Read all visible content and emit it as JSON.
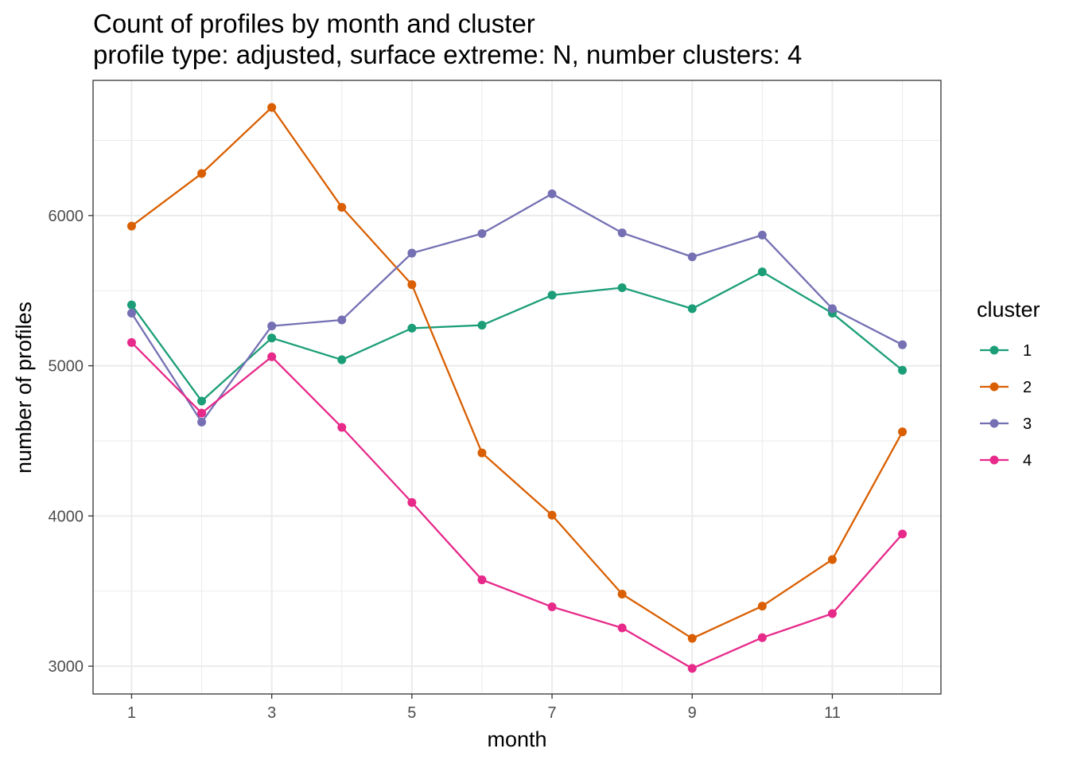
{
  "chart_data": {
    "type": "line",
    "title": "Count of profiles by month and cluster",
    "subtitle": "profile type: adjusted, surface extreme: N, number clusters: 4",
    "xlabel": "month",
    "ylabel": "number of profiles",
    "x": [
      1,
      2,
      3,
      4,
      5,
      6,
      7,
      8,
      9,
      10,
      11,
      12
    ],
    "xlim": [
      0.45,
      12.55
    ],
    "ylim": [
      2815,
      6900
    ],
    "x_ticks": [
      1,
      3,
      5,
      7,
      9,
      11
    ],
    "y_ticks": [
      3000,
      4000,
      5000,
      6000
    ],
    "grid": true,
    "legend": {
      "title": "cluster",
      "position": "right"
    },
    "series": [
      {
        "name": "1",
        "color": "#1B9E77",
        "values": [
          5405,
          4765,
          5185,
          5040,
          5250,
          5270,
          5470,
          5520,
          5380,
          5625,
          5350,
          4970
        ]
      },
      {
        "name": "2",
        "color": "#D95F02",
        "values": [
          5930,
          6280,
          6720,
          6055,
          5540,
          4420,
          4005,
          3480,
          3185,
          3400,
          3710,
          4560
        ]
      },
      {
        "name": "3",
        "color": "#7570B3",
        "values": [
          5350,
          4625,
          5265,
          5305,
          5750,
          5880,
          6145,
          5885,
          5725,
          5870,
          5380,
          5140
        ]
      },
      {
        "name": "4",
        "color": "#E7298A",
        "values": [
          5155,
          4685,
          5060,
          4590,
          4090,
          3575,
          3395,
          3255,
          2985,
          3190,
          3350,
          3880
        ]
      }
    ]
  }
}
